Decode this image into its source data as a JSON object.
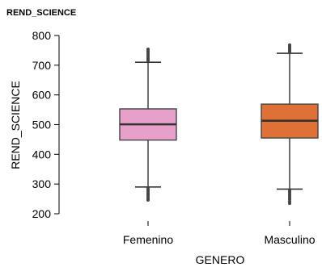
{
  "chart_data": {
    "type": "boxplot",
    "title": "REND_SCIENCE",
    "xlabel": "GENERO",
    "ylabel": "REND_SCIENCE",
    "ylim": [
      200,
      800
    ],
    "yticks": [
      200,
      300,
      400,
      500,
      600,
      700,
      800
    ],
    "grid": false,
    "categories": [
      "Femenino",
      "Masculino"
    ],
    "boxes": [
      {
        "label": "Femenino",
        "color": "#E7A0C9",
        "whisker_low": 290,
        "q1": 448,
        "median": 501,
        "q3": 553,
        "whisker_high": 710,
        "outliers_low": [
          286,
          280,
          274,
          268,
          262,
          256,
          250,
          246
        ],
        "outliers_high": [
          716,
          722,
          728,
          735,
          742,
          748,
          754
        ]
      },
      {
        "label": "Masculino",
        "color": "#DF7137",
        "whisker_low": 283,
        "q1": 455,
        "median": 513,
        "q3": 569,
        "whisker_high": 740,
        "outliers_low": [
          278,
          272,
          266,
          260,
          254,
          248,
          241,
          235
        ],
        "outliers_high": [
          745,
          750,
          755,
          760,
          765,
          768
        ]
      }
    ]
  }
}
